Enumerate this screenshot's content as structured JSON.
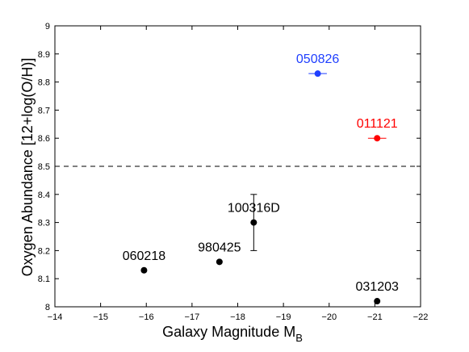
{
  "chart_data": {
    "type": "scatter",
    "title": "",
    "xlabel": "Galaxy Magnitude M",
    "xlabel_subscript": "B",
    "ylabel": "Oxygen Abundance [12+log(O/H)]",
    "xlim": [
      -14,
      -22
    ],
    "ylim": [
      8,
      9
    ],
    "x_reversed": true,
    "x_ticks": [
      -14,
      -15,
      -16,
      -17,
      -18,
      -19,
      -20,
      -21,
      -22
    ],
    "x_tick_labels": [
      "−14",
      "−15",
      "−16",
      "−17",
      "−18",
      "−19",
      "−20",
      "−21",
      "−22"
    ],
    "y_ticks": [
      8,
      8.1,
      8.2,
      8.3,
      8.4,
      8.5,
      8.6,
      8.7,
      8.8,
      8.9,
      9
    ],
    "y_tick_labels": [
      "8",
      "8.1",
      "8.2",
      "8.3",
      "8.4",
      "8.5",
      "8.6",
      "8.7",
      "8.8",
      "8.9",
      "9"
    ],
    "grid": false,
    "reference_line": {
      "y": 8.5,
      "style": "dashed",
      "color": "#000000"
    },
    "points": [
      {
        "label": "060218",
        "x": -15.95,
        "y": 8.13,
        "color": "#000000"
      },
      {
        "label": "980425",
        "x": -17.6,
        "y": 8.16,
        "color": "#000000"
      },
      {
        "label": "100316D",
        "x": -18.35,
        "y": 8.3,
        "color": "#000000",
        "yerr": [
          0.1,
          0.1
        ]
      },
      {
        "label": "031203",
        "x": -21.05,
        "y": 8.02,
        "color": "#000000"
      },
      {
        "label": "050826",
        "x": -19.75,
        "y": 8.83,
        "color": "#1f3fff",
        "xerr": [
          0.2,
          0.2
        ]
      },
      {
        "label": "011121",
        "x": -21.05,
        "y": 8.6,
        "color": "#ff0000",
        "xerr": [
          0.2,
          0.2
        ]
      }
    ]
  }
}
